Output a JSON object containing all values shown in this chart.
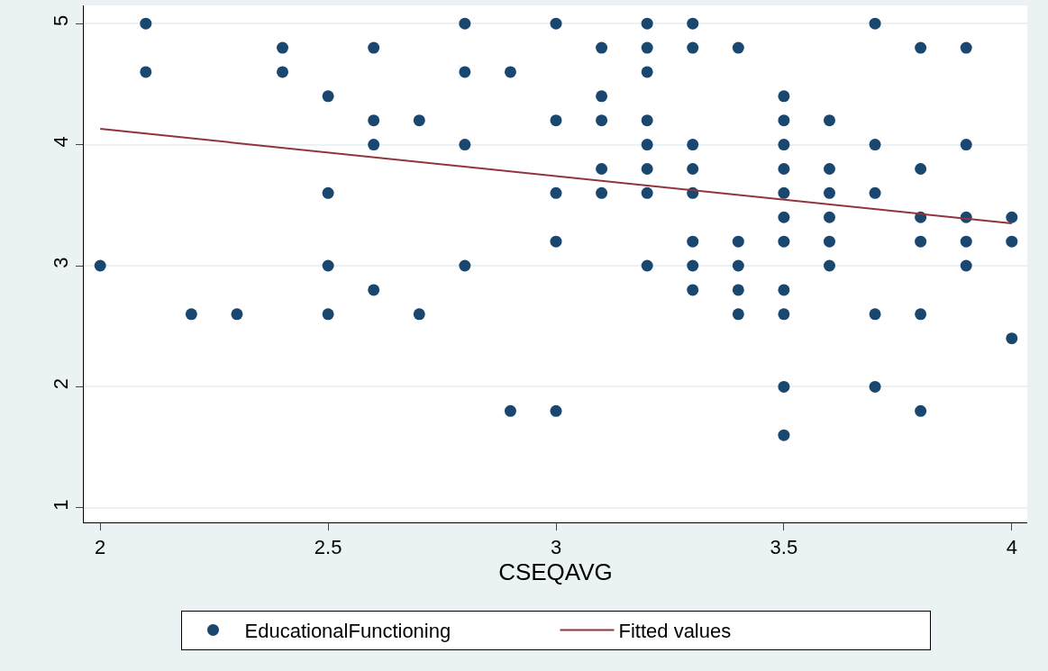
{
  "chart_data": {
    "type": "scatter",
    "xlabel": "CSEQAVG",
    "xlim": [
      1.964,
      4.034
    ],
    "xticks": [
      2,
      2.5,
      3,
      3.5,
      4
    ],
    "ylim": [
      0.88,
      5.15
    ],
    "yticks": [
      1,
      2,
      3,
      4,
      5
    ],
    "grid": "y",
    "legend": "bottom",
    "series": [
      {
        "name": "EducationalFunctioning",
        "marker": "circle",
        "color": "#1a476f",
        "x": [
          2.0,
          2.1,
          2.1,
          2.2,
          2.3,
          2.4,
          2.4,
          2.5,
          2.5,
          2.5,
          2.5,
          2.6,
          2.6,
          2.6,
          2.6,
          2.7,
          2.7,
          2.8,
          2.8,
          2.8,
          2.8,
          2.9,
          2.9,
          3.0,
          3.0,
          3.0,
          3.0,
          3.0,
          3.1,
          3.1,
          3.1,
          3.1,
          3.1,
          3.2,
          3.2,
          3.2,
          3.2,
          3.2,
          3.2,
          3.2,
          3.2,
          3.3,
          3.3,
          3.3,
          3.3,
          3.3,
          3.3,
          3.3,
          3.3,
          3.4,
          3.4,
          3.4,
          3.4,
          3.4,
          3.5,
          3.5,
          3.5,
          3.5,
          3.5,
          3.5,
          3.5,
          3.5,
          3.5,
          3.5,
          3.5,
          3.6,
          3.6,
          3.6,
          3.6,
          3.6,
          3.6,
          3.7,
          3.7,
          3.7,
          3.7,
          3.7,
          3.8,
          3.8,
          3.8,
          3.8,
          3.8,
          3.8,
          3.9,
          3.9,
          3.9,
          3.9,
          3.9,
          4.0,
          4.0,
          4.0
        ],
        "values": [
          3.0,
          5.0,
          4.6,
          2.6,
          2.6,
          4.8,
          4.6,
          4.4,
          3.6,
          3.0,
          2.6,
          4.8,
          4.2,
          4.0,
          2.8,
          4.2,
          2.6,
          5.0,
          4.6,
          4.0,
          3.0,
          4.6,
          1.8,
          5.0,
          4.2,
          3.6,
          3.2,
          1.8,
          4.8,
          4.4,
          4.2,
          3.8,
          3.6,
          5.0,
          4.8,
          4.6,
          4.2,
          4.0,
          3.8,
          3.6,
          3.0,
          5.0,
          4.8,
          4.0,
          3.8,
          3.6,
          3.2,
          3.0,
          2.8,
          4.8,
          3.2,
          3.0,
          2.8,
          2.6,
          4.4,
          4.2,
          4.0,
          3.8,
          3.6,
          3.4,
          3.2,
          2.8,
          2.6,
          2.0,
          1.6,
          4.2,
          3.8,
          3.6,
          3.4,
          3.2,
          3.0,
          5.0,
          4.0,
          3.6,
          2.6,
          2.0,
          4.8,
          3.8,
          3.4,
          3.2,
          2.6,
          1.8,
          4.8,
          4.0,
          3.4,
          3.2,
          3.0,
          3.4,
          3.2,
          2.4
        ]
      },
      {
        "name": "Fitted values",
        "type": "line",
        "marker": "none",
        "color": "#90353b",
        "x": [
          2,
          4
        ],
        "values": [
          4.13,
          3.35
        ]
      }
    ]
  }
}
